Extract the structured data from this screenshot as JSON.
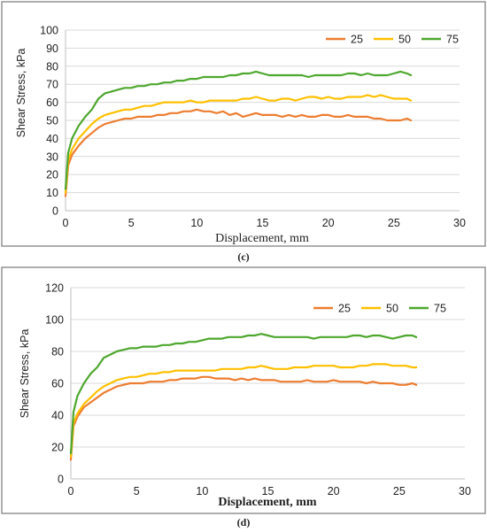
{
  "chart_data": [
    {
      "type": "line",
      "caption": "(c)",
      "xlabel": "Displacement, mm",
      "ylabel": "Shear Stress, kPa",
      "xlim": [
        0,
        30
      ],
      "ylim": [
        0,
        100
      ],
      "xticks": [
        0,
        5,
        10,
        15,
        20,
        25,
        30
      ],
      "yticks": [
        0,
        10,
        20,
        30,
        40,
        50,
        60,
        70,
        80,
        90,
        100
      ],
      "grid": true,
      "legend_position": "top-right",
      "series": [
        {
          "name": "25",
          "color": "#ED7D31",
          "x": [
            0,
            0.2,
            0.5,
            1,
            1.5,
            2,
            2.5,
            3,
            3.5,
            4,
            4.5,
            5,
            5.5,
            6,
            6.5,
            7,
            7.5,
            8,
            8.5,
            9,
            9.5,
            10,
            10.5,
            11,
            11.5,
            12,
            12.5,
            13,
            13.5,
            14,
            14.5,
            15,
            15.5,
            16,
            16.5,
            17,
            17.5,
            18,
            18.5,
            19,
            19.5,
            20,
            20.5,
            21,
            21.5,
            22,
            22.5,
            23,
            23.5,
            24,
            24.5,
            25,
            25.5,
            26,
            26.3
          ],
          "y": [
            8,
            25,
            31,
            36,
            40,
            43,
            46,
            48,
            49,
            50,
            51,
            51,
            52,
            52,
            52,
            53,
            53,
            54,
            54,
            55,
            55,
            56,
            55,
            55,
            54,
            55,
            53,
            54,
            52,
            53,
            54,
            53,
            53,
            53,
            52,
            53,
            52,
            53,
            52,
            52,
            53,
            53,
            52,
            52,
            53,
            52,
            52,
            52,
            51,
            51,
            50,
            50,
            50,
            51,
            50
          ]
        },
        {
          "name": "50",
          "color": "#FFC000",
          "x": [
            0,
            0.2,
            0.5,
            1,
            1.5,
            2,
            2.5,
            3,
            3.5,
            4,
            4.5,
            5,
            5.5,
            6,
            6.5,
            7,
            7.5,
            8,
            8.5,
            9,
            9.5,
            10,
            10.5,
            11,
            11.5,
            12,
            12.5,
            13,
            13.5,
            14,
            14.5,
            15,
            15.5,
            16,
            16.5,
            17,
            17.5,
            18,
            18.5,
            19,
            19.5,
            20,
            20.5,
            21,
            21.5,
            22,
            22.5,
            23,
            23.5,
            24,
            24.5,
            25,
            25.5,
            26,
            26.3
          ],
          "y": [
            10,
            28,
            34,
            40,
            44,
            48,
            51,
            53,
            54,
            55,
            56,
            56,
            57,
            58,
            58,
            59,
            60,
            60,
            60,
            60,
            61,
            60,
            60,
            61,
            61,
            61,
            61,
            61,
            62,
            62,
            63,
            62,
            61,
            61,
            62,
            62,
            61,
            62,
            63,
            63,
            62,
            63,
            62,
            62,
            63,
            63,
            63,
            64,
            63,
            64,
            63,
            62,
            62,
            62,
            61
          ]
        },
        {
          "name": "75",
          "color": "#4EA72E",
          "x": [
            0,
            0.2,
            0.5,
            1,
            1.5,
            2,
            2.5,
            3,
            3.5,
            4,
            4.5,
            5,
            5.5,
            6,
            6.5,
            7,
            7.5,
            8,
            8.5,
            9,
            9.5,
            10,
            10.5,
            11,
            11.5,
            12,
            12.5,
            13,
            13.5,
            14,
            14.5,
            15,
            15.5,
            16,
            16.5,
            17,
            17.5,
            18,
            18.5,
            19,
            19.5,
            20,
            20.5,
            21,
            21.5,
            22,
            22.5,
            23,
            23.5,
            24,
            24.5,
            25,
            25.5,
            26,
            26.3
          ],
          "y": [
            12,
            32,
            40,
            47,
            52,
            56,
            62,
            65,
            66,
            67,
            68,
            68,
            69,
            69,
            70,
            70,
            71,
            71,
            72,
            72,
            73,
            73,
            74,
            74,
            74,
            74,
            75,
            75,
            76,
            76,
            77,
            76,
            75,
            75,
            75,
            75,
            75,
            75,
            74,
            75,
            75,
            75,
            75,
            75,
            76,
            76,
            75,
            76,
            75,
            75,
            75,
            76,
            77,
            76,
            75
          ]
        }
      ]
    },
    {
      "type": "line",
      "caption": "(d)",
      "xlabel": "Displacement, mm",
      "ylabel": "Shear Stress, kPa",
      "xlim": [
        0,
        30
      ],
      "ylim": [
        0,
        120
      ],
      "xticks": [
        0,
        5,
        10,
        15,
        20,
        25,
        30
      ],
      "yticks": [
        0,
        20,
        40,
        60,
        80,
        100,
        120
      ],
      "grid": true,
      "legend_position": "top-right",
      "series": [
        {
          "name": "25",
          "color": "#ED7D31",
          "x": [
            0,
            0.2,
            0.5,
            1,
            1.5,
            2,
            2.5,
            3,
            3.5,
            4,
            4.5,
            5,
            5.5,
            6,
            6.5,
            7,
            7.5,
            8,
            8.5,
            9,
            9.5,
            10,
            10.5,
            11,
            11.5,
            12,
            12.5,
            13,
            13.5,
            14,
            14.5,
            15,
            15.5,
            16,
            16.5,
            17,
            17.5,
            18,
            18.5,
            19,
            19.5,
            20,
            20.5,
            21,
            21.5,
            22,
            22.5,
            23,
            23.5,
            24,
            24.5,
            25,
            25.5,
            26,
            26.3
          ],
          "y": [
            12,
            33,
            39,
            45,
            48,
            51,
            54,
            56,
            58,
            59,
            60,
            60,
            60,
            61,
            61,
            61,
            62,
            62,
            63,
            63,
            63,
            64,
            64,
            63,
            63,
            63,
            62,
            63,
            62,
            63,
            62,
            62,
            62,
            61,
            61,
            61,
            61,
            62,
            61,
            61,
            61,
            62,
            61,
            61,
            61,
            61,
            60,
            61,
            60,
            60,
            60,
            59,
            59,
            60,
            59
          ]
        },
        {
          "name": "50",
          "color": "#FFC000",
          "x": [
            0,
            0.2,
            0.5,
            1,
            1.5,
            2,
            2.5,
            3,
            3.5,
            4,
            4.5,
            5,
            5.5,
            6,
            6.5,
            7,
            7.5,
            8,
            8.5,
            9,
            9.5,
            10,
            10.5,
            11,
            11.5,
            12,
            12.5,
            13,
            13.5,
            14,
            14.5,
            15,
            15.5,
            16,
            16.5,
            17,
            17.5,
            18,
            18.5,
            19,
            19.5,
            20,
            20.5,
            21,
            21.5,
            22,
            22.5,
            23,
            23.5,
            24,
            24.5,
            25,
            25.5,
            26,
            26.3
          ],
          "y": [
            14,
            35,
            41,
            47,
            51,
            55,
            58,
            60,
            62,
            63,
            64,
            64,
            65,
            66,
            66,
            67,
            67,
            68,
            68,
            68,
            68,
            68,
            68,
            68,
            69,
            69,
            69,
            69,
            70,
            70,
            71,
            70,
            69,
            69,
            69,
            70,
            70,
            70,
            71,
            71,
            71,
            71,
            70,
            70,
            70,
            71,
            71,
            72,
            72,
            72,
            71,
            71,
            71,
            70,
            70
          ]
        },
        {
          "name": "75",
          "color": "#4EA72E",
          "x": [
            0,
            0.2,
            0.5,
            1,
            1.5,
            2,
            2.5,
            3,
            3.5,
            4,
            4.5,
            5,
            5.5,
            6,
            6.5,
            7,
            7.5,
            8,
            8.5,
            9,
            9.5,
            10,
            10.5,
            11,
            11.5,
            12,
            12.5,
            13,
            13.5,
            14,
            14.5,
            15,
            15.5,
            16,
            16.5,
            17,
            17.5,
            18,
            18.5,
            19,
            19.5,
            20,
            20.5,
            21,
            21.5,
            22,
            22.5,
            23,
            23.5,
            24,
            24.5,
            25,
            25.5,
            26,
            26.3
          ],
          "y": [
            16,
            42,
            52,
            60,
            66,
            70,
            76,
            78,
            80,
            81,
            82,
            82,
            83,
            83,
            83,
            84,
            84,
            85,
            85,
            86,
            86,
            87,
            88,
            88,
            88,
            89,
            89,
            89,
            90,
            90,
            91,
            90,
            89,
            89,
            89,
            89,
            89,
            89,
            88,
            89,
            89,
            89,
            89,
            89,
            90,
            90,
            89,
            90,
            90,
            89,
            88,
            89,
            90,
            90,
            89
          ]
        }
      ]
    }
  ]
}
